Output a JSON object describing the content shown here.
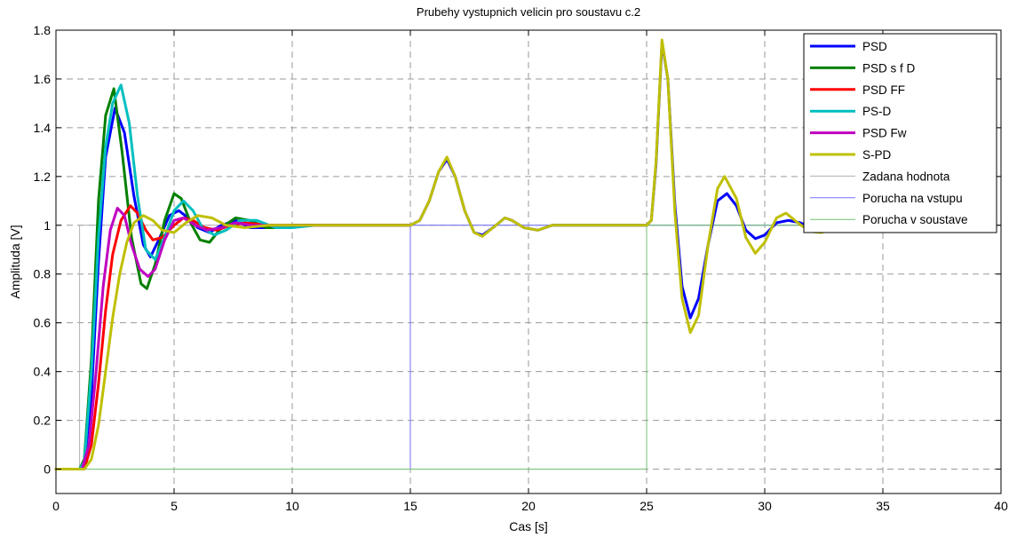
{
  "chart_data": {
    "type": "line",
    "title": "Prubehy vystupnich velicin pro soustavu c.2",
    "xlabel": "Cas [s]",
    "ylabel": "Amplituda [V]",
    "xlim": [
      0,
      40
    ],
    "ylim": [
      -0.1,
      1.8
    ],
    "xticks": [
      0,
      5,
      10,
      15,
      20,
      25,
      30,
      35,
      40
    ],
    "yticks": [
      0,
      0.2,
      0.4,
      0.6,
      0.8,
      1,
      1.2,
      1.4,
      1.6,
      1.8
    ],
    "xtick_labels": [
      "0",
      "5",
      "10",
      "15",
      "20",
      "25",
      "30",
      "35",
      "40"
    ],
    "ytick_labels": [
      "0",
      "0.2",
      "0.4",
      "0.6",
      "0.8",
      "1",
      "1.2",
      "1.4",
      "1.6",
      "1.8"
    ],
    "grid": true,
    "grid_style": "dashed",
    "legend_position": "top-right",
    "series": [
      {
        "name": "PSD",
        "color": "#0000ff",
        "width": 3,
        "x": [
          0,
          1,
          1.2,
          1.5,
          1.8,
          2.1,
          2.5,
          2.9,
          3.3,
          3.7,
          4.0,
          4.4,
          4.8,
          5.2,
          5.6,
          6.0,
          6.5,
          7.0,
          7.6,
          8.2,
          9.0,
          10,
          12,
          15,
          15.4,
          15.8,
          16.2,
          16.55,
          16.9,
          17.3,
          17.7,
          18.05,
          18.5,
          19.0,
          19.3,
          19.8,
          20.4,
          21.0,
          22,
          23,
          24,
          25,
          25.2,
          25.4,
          25.65,
          25.9,
          26.2,
          26.5,
          26.85,
          27.2,
          27.6,
          28.0,
          28.4,
          28.8,
          29.2,
          29.6,
          30.0,
          30.5,
          31.0,
          31.5,
          32.0,
          32.5,
          33.0
        ],
        "y": [
          0,
          0,
          0.02,
          0.3,
          0.85,
          1.28,
          1.48,
          1.38,
          1.12,
          0.92,
          0.87,
          0.95,
          1.04,
          1.06,
          1.03,
          0.99,
          0.97,
          1.0,
          1.02,
          0.99,
          0.99,
          1.0,
          1.0,
          1.0,
          1.02,
          1.1,
          1.22,
          1.27,
          1.2,
          1.06,
          0.97,
          0.96,
          0.99,
          1.03,
          1.02,
          0.99,
          0.98,
          1.0,
          1.0,
          1.0,
          1.0,
          1.0,
          1.02,
          1.25,
          1.75,
          1.6,
          1.08,
          0.75,
          0.62,
          0.7,
          0.92,
          1.1,
          1.13,
          1.08,
          0.98,
          0.945,
          0.96,
          1.01,
          1.02,
          1.01,
          0.99,
          0.985,
          1.0
        ]
      },
      {
        "name": "PSD s f D",
        "color": "#008000",
        "width": 3,
        "x": [
          0,
          1,
          1.2,
          1.5,
          1.8,
          2.1,
          2.45,
          2.8,
          3.2,
          3.6,
          3.85,
          4.2,
          4.6,
          5.0,
          5.3,
          5.7,
          6.1,
          6.5,
          7.0,
          7.6,
          8.2,
          8.9,
          9.6,
          10.5,
          12,
          15
        ],
        "y": [
          0,
          0,
          0.04,
          0.45,
          1.1,
          1.45,
          1.56,
          1.3,
          0.95,
          0.76,
          0.74,
          0.84,
          1.02,
          1.13,
          1.11,
          1.01,
          0.94,
          0.93,
          0.99,
          1.03,
          1.02,
          0.99,
          0.99,
          1.0,
          1.0,
          1.0
        ]
      },
      {
        "name": "PSD FF",
        "color": "#ff0000",
        "width": 3,
        "x": [
          0,
          1.2,
          1.5,
          1.8,
          2.1,
          2.4,
          2.75,
          3.15,
          3.45,
          3.8,
          4.1,
          4.5,
          5.0,
          5.4,
          5.8,
          6.3,
          6.8,
          7.4,
          8.0,
          9.0,
          10,
          12,
          15
        ],
        "y": [
          0,
          0,
          0.1,
          0.35,
          0.65,
          0.88,
          1.02,
          1.08,
          1.05,
          0.98,
          0.94,
          0.95,
          1.0,
          1.03,
          1.02,
          0.99,
          0.98,
          1.0,
          1.01,
          1.0,
          1.0,
          1.0,
          1.0
        ]
      },
      {
        "name": "PS-D",
        "color": "#00bfbf",
        "width": 3,
        "x": [
          0,
          1,
          1.2,
          1.5,
          1.8,
          2.1,
          2.4,
          2.75,
          3.1,
          3.45,
          3.8,
          4.2,
          4.6,
          5.0,
          5.4,
          5.8,
          6.2,
          6.7,
          7.2,
          7.8,
          8.5,
          9.3,
          10,
          11,
          12,
          15
        ],
        "y": [
          0,
          0,
          0.03,
          0.4,
          0.95,
          1.32,
          1.5,
          1.575,
          1.42,
          1.12,
          0.9,
          0.86,
          0.95,
          1.06,
          1.1,
          1.06,
          0.99,
          0.96,
          0.98,
          1.02,
          1.02,
          0.99,
          0.99,
          1.0,
          1.0,
          1.0
        ]
      },
      {
        "name": "PSD Fw",
        "color": "#bf00bf",
        "width": 3,
        "x": [
          0,
          1.1,
          1.4,
          1.7,
          2.0,
          2.3,
          2.6,
          2.9,
          3.2,
          3.55,
          3.9,
          4.2,
          4.6,
          5.0,
          5.4,
          5.9,
          6.4,
          7.0,
          7.6,
          8.3,
          9.0,
          10,
          12,
          15
        ],
        "y": [
          0,
          0,
          0.1,
          0.4,
          0.75,
          0.98,
          1.07,
          1.04,
          0.92,
          0.82,
          0.79,
          0.82,
          0.94,
          1.02,
          1.03,
          1.0,
          0.98,
          0.99,
          1.01,
          1.0,
          1.0,
          1.0,
          1.0,
          1.0
        ]
      },
      {
        "name": "S-PD",
        "color": "#bfbf00",
        "width": 3,
        "x": [
          0,
          1.2,
          1.5,
          1.8,
          2.1,
          2.4,
          2.7,
          3.0,
          3.3,
          3.7,
          4.1,
          4.5,
          5.0,
          5.5,
          6.0,
          6.6,
          7.2,
          8.0,
          9.0,
          10,
          12,
          15,
          15.4,
          15.8,
          16.2,
          16.55,
          16.9,
          17.3,
          17.7,
          18.05,
          18.5,
          19.0,
          19.3,
          19.8,
          20.4,
          21.0,
          22,
          23,
          24,
          25,
          25.2,
          25.4,
          25.65,
          25.9,
          26.2,
          26.5,
          26.85,
          27.2,
          27.6,
          28.0,
          28.3,
          28.8,
          29.2,
          29.6,
          30.0,
          30.5,
          30.9,
          31.4,
          31.9,
          32.4,
          33.0
        ],
        "y": [
          0,
          0,
          0.04,
          0.18,
          0.4,
          0.62,
          0.8,
          0.93,
          1.01,
          1.04,
          1.02,
          0.98,
          0.97,
          1.01,
          1.04,
          1.03,
          1.0,
          0.99,
          1.0,
          1.0,
          1.0,
          1.0,
          1.02,
          1.1,
          1.22,
          1.28,
          1.2,
          1.06,
          0.97,
          0.955,
          0.99,
          1.03,
          1.02,
          0.99,
          0.98,
          1.0,
          1.0,
          1.0,
          1.0,
          1.0,
          1.02,
          1.26,
          1.76,
          1.6,
          1.05,
          0.7,
          0.56,
          0.63,
          0.92,
          1.15,
          1.2,
          1.11,
          0.95,
          0.885,
          0.93,
          1.03,
          1.05,
          1.01,
          0.975,
          0.97,
          0.99
        ]
      },
      {
        "name": "Zadana hodnota",
        "color": "#b0b0b0",
        "width": 1,
        "x": [
          0,
          1,
          1,
          40
        ],
        "y": [
          0,
          0,
          1,
          1
        ]
      },
      {
        "name": "Porucha na vstupu",
        "color": "#7070ff",
        "width": 1,
        "x": [
          0,
          15,
          15,
          40
        ],
        "y": [
          0,
          0,
          1,
          1
        ]
      },
      {
        "name": "Porucha v soustave",
        "color": "#70c070",
        "width": 1,
        "x": [
          0,
          25,
          25,
          40
        ],
        "y": [
          0,
          0,
          1,
          1
        ]
      }
    ]
  }
}
